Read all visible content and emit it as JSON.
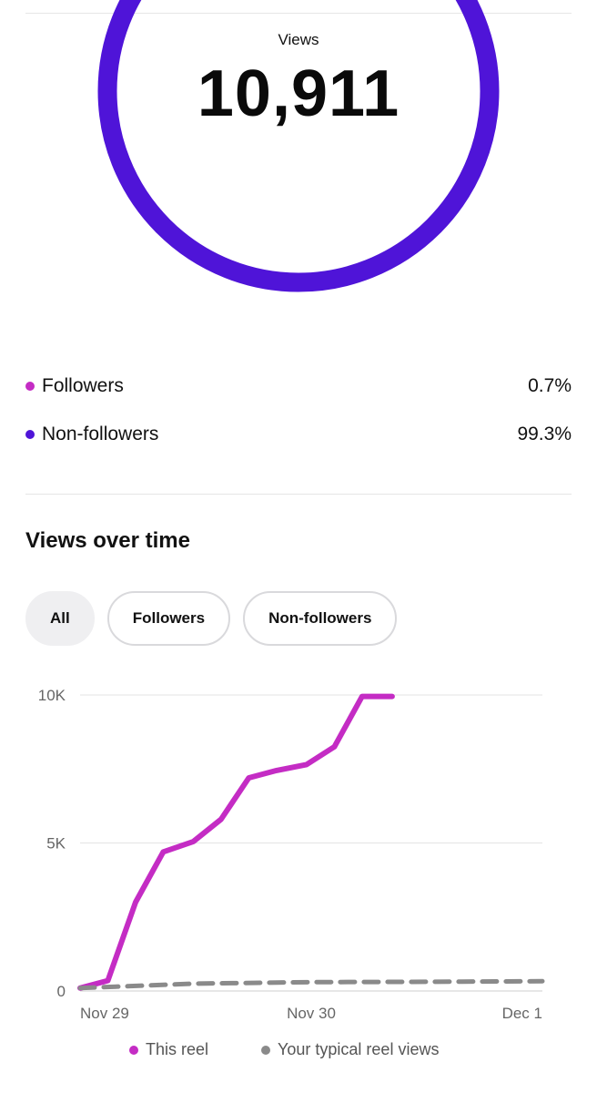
{
  "summary": {
    "label": "Views",
    "value": "10,911",
    "ring_color": "#4f14d8"
  },
  "breakdown": [
    {
      "label": "Followers",
      "value": "0.7%",
      "color": "#c42cc4"
    },
    {
      "label": "Non-followers",
      "value": "99.3%",
      "color": "#4f14d8"
    }
  ],
  "views_over_time": {
    "title": "Views over time",
    "filters": [
      {
        "label": "All",
        "active": true
      },
      {
        "label": "Followers",
        "active": false
      },
      {
        "label": "Non-followers",
        "active": false
      }
    ]
  },
  "chart_data": {
    "type": "line",
    "x_ticks": [
      "Nov 29",
      "Nov 30",
      "Dec 1"
    ],
    "y_ticks": [
      "0",
      "5K",
      "10K"
    ],
    "ylim": [
      0,
      10000
    ],
    "xlim": [
      0,
      2
    ],
    "grid": true,
    "legend_position": "bottom",
    "series": [
      {
        "name": "This reel",
        "color": "#c42cc4",
        "style": "solid",
        "x": [
          0,
          0.12,
          0.24,
          0.36,
          0.49,
          0.61,
          0.73,
          0.85,
          0.98,
          1.1,
          1.22,
          1.35
        ],
        "y": [
          100,
          350,
          3000,
          4700,
          5050,
          5800,
          7200,
          7450,
          7650,
          8250,
          9950,
          9950
        ]
      },
      {
        "name": "Your typical reel views",
        "color": "#8a8a8a",
        "style": "dashed",
        "x": [
          0,
          0.5,
          1.0,
          1.5,
          2.0
        ],
        "y": [
          100,
          250,
          300,
          310,
          330
        ]
      }
    ]
  }
}
